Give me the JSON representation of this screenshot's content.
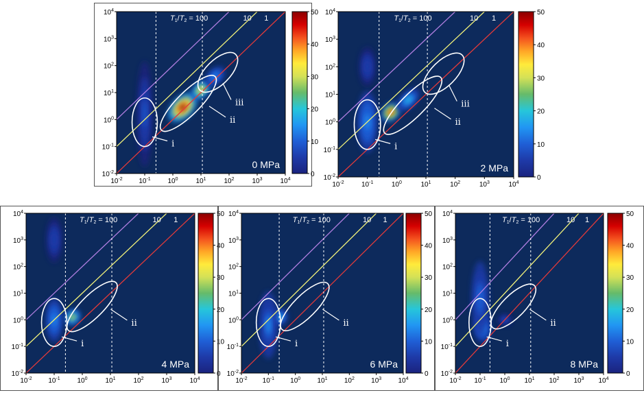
{
  "colors": {
    "background": "#0d2a5c",
    "ratio_100": "#b07fe0",
    "ratio_10": "#f2f27a",
    "ratio_1": "#e23a3a",
    "marker_line": "#ffffff",
    "colormap": [
      "#1a237e",
      "#1e3aa8",
      "#1f5fd6",
      "#2196f3",
      "#26c6da",
      "#66bb6a",
      "#d4e157",
      "#ffeb3b",
      "#ffa726",
      "#f4511e",
      "#d50000",
      "#8b0000"
    ]
  },
  "chart_data": [
    {
      "type": "heatmap",
      "panel_label": "0 MPa",
      "ratio_labels": {
        "r100": "100",
        "r10": "10",
        "r1": "1"
      },
      "x_ticks": [
        "-2",
        "-1",
        "0",
        "1",
        "2",
        "3",
        "4"
      ],
      "y_ticks": [
        "-2",
        "-1",
        "0",
        "1",
        "2",
        "3",
        "4"
      ],
      "xlim_log10": [
        -2,
        4
      ],
      "ylim_log10": [
        -2,
        4
      ],
      "dashed_x_log10": [
        -0.6,
        1.05
      ],
      "colorbar": {
        "min": 0,
        "max": 50,
        "ticks": [
          "0",
          "10",
          "20",
          "30",
          "40",
          "50"
        ]
      },
      "regions": [
        {
          "label": "i",
          "cx": -1.0,
          "cy": -0.1,
          "rx": 0.45,
          "ry": 0.9,
          "angle": 0
        },
        {
          "label": "ii",
          "cx": 0.55,
          "cy": 0.6,
          "rx": 1.35,
          "ry": 0.42,
          "angle": 45
        },
        {
          "label": "iii",
          "cx": 1.6,
          "cy": 1.75,
          "rx": 0.9,
          "ry": 0.45,
          "angle": 45
        }
      ],
      "blobs": [
        {
          "x": 0.35,
          "y": 0.45,
          "sx": 0.45,
          "sy": 0.28,
          "rot": 45,
          "v": 50
        },
        {
          "x": 1.0,
          "y": 1.1,
          "sx": 0.3,
          "sy": 0.2,
          "rot": 45,
          "v": 35
        },
        {
          "x": 1.5,
          "y": 1.6,
          "sx": 0.3,
          "sy": 0.2,
          "rot": 45,
          "v": 15
        },
        {
          "x": -1.0,
          "y": 0.2,
          "sx": 0.2,
          "sy": 1.4,
          "rot": 0,
          "v": 8
        }
      ]
    },
    {
      "type": "heatmap",
      "panel_label": "2 MPa",
      "ratio_labels": {
        "r100": "100",
        "r10": "10",
        "r1": "1"
      },
      "x_ticks": [
        "-2",
        "-1",
        "0",
        "1",
        "2",
        "3",
        "4"
      ],
      "y_ticks": [
        "-2",
        "-1",
        "0",
        "1",
        "2",
        "3",
        "4"
      ],
      "xlim_log10": [
        -2,
        4
      ],
      "ylim_log10": [
        -2,
        4
      ],
      "dashed_x_log10": [
        -0.6,
        1.05
      ],
      "colorbar": {
        "min": 0,
        "max": 50,
        "ticks": [
          "0",
          "10",
          "20",
          "30",
          "40",
          "50"
        ]
      },
      "regions": [
        {
          "label": "i",
          "cx": -1.0,
          "cy": -0.1,
          "rx": 0.45,
          "ry": 0.9,
          "angle": 0
        },
        {
          "label": "ii",
          "cx": 0.55,
          "cy": 0.6,
          "rx": 1.35,
          "ry": 0.42,
          "angle": 45
        },
        {
          "label": "iii",
          "cx": 1.6,
          "cy": 1.75,
          "rx": 0.9,
          "ry": 0.45,
          "angle": 45
        }
      ],
      "blobs": [
        {
          "x": -0.2,
          "y": 0.35,
          "sx": 0.28,
          "sy": 0.22,
          "rot": 45,
          "v": 45
        },
        {
          "x": 0.4,
          "y": 0.8,
          "sx": 0.35,
          "sy": 0.2,
          "rot": 45,
          "v": 20
        },
        {
          "x": -1.0,
          "y": 0.0,
          "sx": 0.25,
          "sy": 0.8,
          "rot": 0,
          "v": 15
        },
        {
          "x": -1.0,
          "y": 2.0,
          "sx": 0.2,
          "sy": 0.5,
          "rot": 0,
          "v": 6
        }
      ]
    },
    {
      "type": "heatmap",
      "panel_label": "4 MPa",
      "ratio_labels": {
        "r100": "100",
        "r10": "10",
        "r1": "1"
      },
      "x_ticks": [
        "-2",
        "-1",
        "0",
        "1",
        "2",
        "3",
        "4"
      ],
      "y_ticks": [
        "-2",
        "-1",
        "0",
        "1",
        "2",
        "3",
        "4"
      ],
      "xlim_log10": [
        -2,
        4
      ],
      "ylim_log10": [
        -2,
        4
      ],
      "dashed_x_log10": [
        -0.6,
        1.05
      ],
      "colorbar": {
        "min": 0,
        "max": 50,
        "ticks": [
          "0",
          "10",
          "20",
          "30",
          "40",
          "50"
        ]
      },
      "regions": [
        {
          "label": "i",
          "cx": -1.0,
          "cy": -0.1,
          "rx": 0.45,
          "ry": 0.9,
          "angle": 0
        },
        {
          "label": "ii",
          "cx": 0.35,
          "cy": 0.5,
          "rx": 1.2,
          "ry": 0.42,
          "angle": 45
        }
      ],
      "blobs": [
        {
          "x": -0.35,
          "y": 0.1,
          "sx": 0.22,
          "sy": 0.2,
          "rot": 45,
          "v": 28
        },
        {
          "x": -1.0,
          "y": 0.0,
          "sx": 0.22,
          "sy": 0.6,
          "rot": 0,
          "v": 14
        },
        {
          "x": -1.0,
          "y": 3.0,
          "sx": 0.2,
          "sy": 0.6,
          "rot": 0,
          "v": 5
        }
      ]
    },
    {
      "type": "heatmap",
      "panel_label": "6 MPa",
      "ratio_labels": {
        "r100": "100",
        "r10": "10",
        "r1": "1"
      },
      "x_ticks": [
        "-2",
        "-1",
        "0",
        "1",
        "2",
        "3",
        "4"
      ],
      "y_ticks": [
        "-2",
        "-1",
        "0",
        "1",
        "2",
        "3",
        "4"
      ],
      "xlim_log10": [
        -2,
        4
      ],
      "ylim_log10": [
        -2,
        4
      ],
      "dashed_x_log10": [
        -0.6,
        1.05
      ],
      "colorbar": {
        "min": 0,
        "max": 50,
        "ticks": [
          "0",
          "10",
          "20",
          "30",
          "40",
          "50"
        ]
      },
      "regions": [
        {
          "label": "i",
          "cx": -1.0,
          "cy": -0.1,
          "rx": 0.45,
          "ry": 0.9,
          "angle": 0
        },
        {
          "label": "ii",
          "cx": 0.35,
          "cy": 0.5,
          "rx": 1.2,
          "ry": 0.42,
          "angle": 45
        }
      ],
      "blobs": [
        {
          "x": -0.6,
          "y": 0.1,
          "sx": 0.25,
          "sy": 0.22,
          "rot": 45,
          "v": 16
        },
        {
          "x": -1.0,
          "y": -0.2,
          "sx": 0.25,
          "sy": 0.9,
          "rot": 0,
          "v": 12
        }
      ]
    },
    {
      "type": "heatmap",
      "panel_label": "8 MPa",
      "ratio_labels": {
        "r100": "100",
        "r10": "10",
        "r1": "1"
      },
      "x_ticks": [
        "-2",
        "-1",
        "0",
        "1",
        "2",
        "3",
        "4"
      ],
      "y_ticks": [
        "-2",
        "-1",
        "0",
        "1",
        "2",
        "3",
        "4"
      ],
      "xlim_log10": [
        -2,
        4
      ],
      "ylim_log10": [
        -2,
        4
      ],
      "dashed_x_log10": [
        -0.6,
        1.05
      ],
      "colorbar": {
        "min": 0,
        "max": 50,
        "ticks": [
          "0",
          "10",
          "20",
          "30",
          "40",
          "50"
        ]
      },
      "regions": [
        {
          "label": "i",
          "cx": -1.0,
          "cy": -0.1,
          "rx": 0.45,
          "ry": 0.9,
          "angle": 0
        },
        {
          "label": "ii",
          "cx": 0.35,
          "cy": 0.5,
          "rx": 1.2,
          "ry": 0.42,
          "angle": 45
        }
      ],
      "blobs": [
        {
          "x": -0.9,
          "y": -0.3,
          "sx": 0.25,
          "sy": 0.4,
          "rot": 0,
          "v": 14
        },
        {
          "x": -1.0,
          "y": 0.8,
          "sx": 0.25,
          "sy": 1.0,
          "rot": 0,
          "v": 10
        },
        {
          "x": 0.0,
          "y": 0.0,
          "sx": 0.2,
          "sy": 0.15,
          "rot": 0,
          "v": 8
        }
      ]
    }
  ]
}
